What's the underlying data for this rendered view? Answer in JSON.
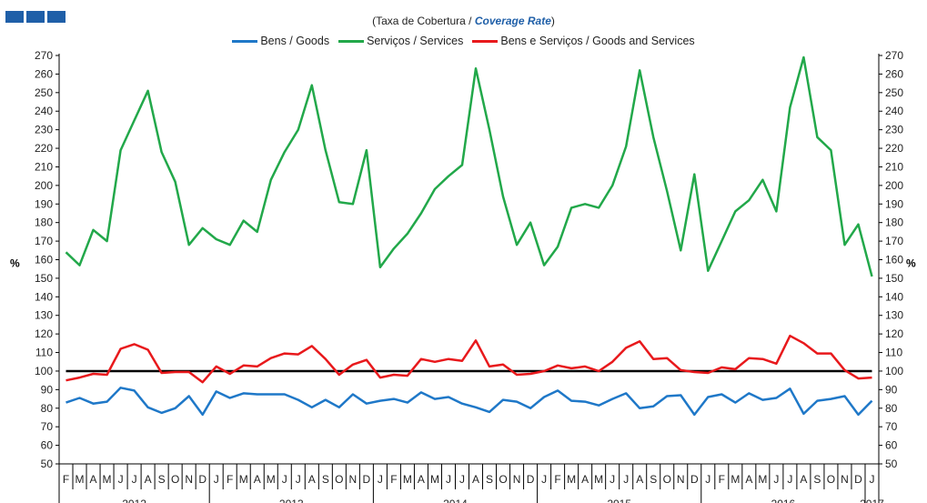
{
  "title": {
    "prefix": "(Taxa de Cobertura / ",
    "emphasis": "Coverage Rate",
    "suffix": ")"
  },
  "colors": {
    "goods": "#1f78c8",
    "services": "#22a84a",
    "total": "#e8191c",
    "reference": "#000000",
    "logo": "#1f5fa8"
  },
  "chart_data": {
    "type": "line",
    "ylabel": "%",
    "ylabel_right": "%",
    "ylim": [
      50,
      270
    ],
    "yticks": [
      50,
      60,
      70,
      80,
      90,
      100,
      110,
      120,
      130,
      140,
      150,
      160,
      170,
      180,
      190,
      200,
      210,
      220,
      230,
      240,
      250,
      260,
      270
    ],
    "x": [
      "2012-02",
      "2012-03",
      "2012-04",
      "2012-05",
      "2012-06",
      "2012-07",
      "2012-08",
      "2012-09",
      "2012-10",
      "2012-11",
      "2012-12",
      "2013-01",
      "2013-02",
      "2013-03",
      "2013-04",
      "2013-05",
      "2013-06",
      "2013-07",
      "2013-08",
      "2013-09",
      "2013-10",
      "2013-11",
      "2013-12",
      "2014-01",
      "2014-02",
      "2014-03",
      "2014-04",
      "2014-05",
      "2014-06",
      "2014-07",
      "2014-08",
      "2014-09",
      "2014-10",
      "2014-11",
      "2014-12",
      "2015-01",
      "2015-02",
      "2015-03",
      "2015-04",
      "2015-05",
      "2015-06",
      "2015-07",
      "2015-08",
      "2015-09",
      "2015-10",
      "2015-11",
      "2015-12",
      "2016-01",
      "2016-02",
      "2016-03",
      "2016-04",
      "2016-05",
      "2016-06",
      "2016-07",
      "2016-08",
      "2016-09",
      "2016-10",
      "2016-11",
      "2016-12",
      "2017-01"
    ],
    "month_labels": [
      "F",
      "M",
      "A",
      "M",
      "J",
      "J",
      "A",
      "S",
      "O",
      "N",
      "D",
      "J",
      "F",
      "M",
      "A",
      "M",
      "J",
      "J",
      "A",
      "S",
      "O",
      "N",
      "D",
      "J",
      "F",
      "M",
      "A",
      "M",
      "J",
      "J",
      "A",
      "S",
      "O",
      "N",
      "D",
      "J",
      "F",
      "M",
      "A",
      "M",
      "J",
      "J",
      "A",
      "S",
      "O",
      "N",
      "D",
      "J",
      "F",
      "M",
      "A",
      "M",
      "J",
      "J",
      "A",
      "S",
      "O",
      "N",
      "D",
      "J"
    ],
    "years": [
      {
        "label": "2012",
        "start": 0,
        "end": 10
      },
      {
        "label": "2013",
        "start": 11,
        "end": 22
      },
      {
        "label": "2014",
        "start": 23,
        "end": 34
      },
      {
        "label": "2015",
        "start": 35,
        "end": 46
      },
      {
        "label": "2016",
        "start": 47,
        "end": 58
      },
      {
        "label": "2017",
        "start": 59,
        "end": 59
      }
    ],
    "reference_line": 100,
    "series": [
      {
        "name": "Bens / Goods",
        "key": "goods",
        "values": [
          83,
          85.5,
          82.5,
          83.5,
          91,
          89.5,
          80.5,
          77.5,
          80,
          86.5,
          76.5,
          89,
          85.5,
          88,
          87.5,
          87.5,
          87.5,
          84.5,
          80.5,
          84.5,
          80.5,
          87.5,
          82.5,
          84,
          85,
          83,
          88.5,
          85,
          86,
          82.5,
          80.5,
          78,
          84.5,
          83.5,
          80,
          86,
          89.5,
          84,
          83.5,
          81.5,
          85,
          88,
          80,
          81,
          86.5,
          87,
          76.5,
          86,
          87.5,
          83,
          88,
          84.5,
          85.5,
          90.5,
          77,
          84,
          85,
          86.5,
          76.5,
          84
        ]
      },
      {
        "name": "Serviços / Services",
        "key": "services",
        "values": [
          164,
          157,
          176,
          170,
          219,
          235,
          251,
          218,
          202,
          168,
          177,
          171,
          168,
          181,
          175,
          203,
          218,
          230,
          254,
          219,
          191,
          190,
          219,
          156,
          166,
          174,
          185,
          198,
          205,
          211,
          263,
          230,
          194,
          168,
          180,
          157,
          167,
          188,
          190,
          188,
          200,
          221,
          262,
          226,
          197,
          165,
          206,
          154,
          170,
          186,
          192,
          203,
          186,
          242,
          269,
          226,
          219,
          168,
          179,
          151
        ]
      },
      {
        "name": "Bens e Serviços / Goods and Services",
        "key": "total",
        "values": [
          95,
          96.5,
          98.5,
          98,
          112,
          114.5,
          111.5,
          99,
          99.5,
          99.5,
          94,
          102.5,
          98.5,
          103,
          102.5,
          107,
          109.5,
          109,
          113.5,
          106.5,
          98,
          103.5,
          106,
          96.5,
          98,
          97.5,
          106.5,
          105,
          106.5,
          105.5,
          116.5,
          102.5,
          103.5,
          98,
          98.5,
          100,
          103,
          101.5,
          102.5,
          100,
          105,
          112.5,
          116,
          106.5,
          107,
          100.5,
          99.5,
          99,
          102,
          101,
          107,
          106.5,
          104,
          119,
          115,
          109.5,
          109.5,
          100.5,
          96,
          96.5
        ]
      }
    ]
  }
}
